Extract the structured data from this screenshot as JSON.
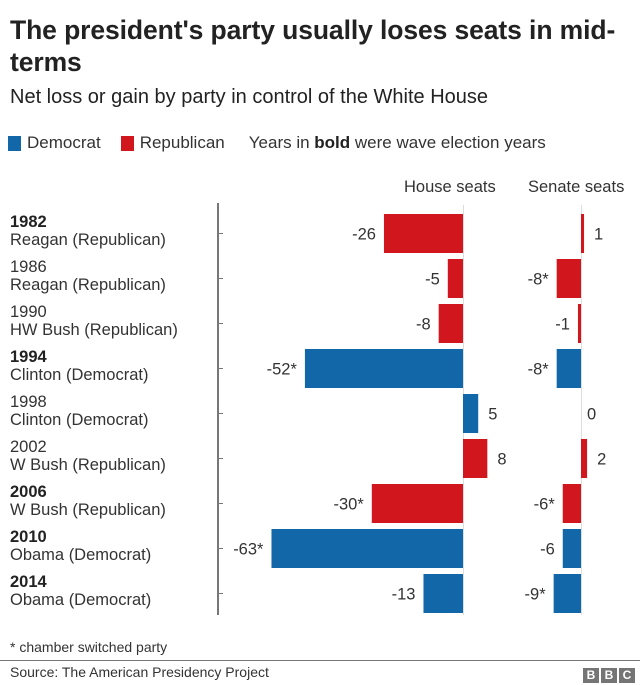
{
  "header": {
    "title": "The president's party usually loses seats in mid-terms",
    "subtitle": "Net loss or gain by party in control of the White House"
  },
  "legend": {
    "democrat_label": "Democrat",
    "republican_label": "Republican",
    "note_prefix": "Years in ",
    "note_bold": "bold",
    "note_suffix": " were wave election years"
  },
  "colors": {
    "democrat": "#1167a8",
    "republican": "#d1161d",
    "zero_line": "#dddddd",
    "axis": "#777777"
  },
  "footer": {
    "footnote": "* chamber switched party",
    "source": "Source: The American Presidency Project",
    "logo": [
      "B",
      "B",
      "C"
    ]
  },
  "chart_data": {
    "type": "bar",
    "orientation": "horizontal",
    "title": "The president's party usually loses seats in mid-terms",
    "subtitle": "Net loss or gain by party in control of the White House",
    "panels": [
      "House seats",
      "Senate seats"
    ],
    "legend": [
      "Democrat",
      "Republican"
    ],
    "legend_position": "top-left",
    "grid": false,
    "rows": [
      {
        "year": "1982",
        "president": "Reagan (Republican)",
        "party": "republican",
        "wave": true,
        "house": -26,
        "house_label": "-26",
        "senate": 1,
        "senate_label": "1"
      },
      {
        "year": "1986",
        "president": "Reagan (Republican)",
        "party": "republican",
        "wave": false,
        "house": -5,
        "house_label": "-5",
        "senate": -8,
        "senate_label": "-8*"
      },
      {
        "year": "1990",
        "president": "HW Bush (Republican)",
        "party": "republican",
        "wave": false,
        "house": -8,
        "house_label": "-8",
        "senate": -1,
        "senate_label": "-1"
      },
      {
        "year": "1994",
        "president": "Clinton (Democrat)",
        "party": "democrat",
        "wave": true,
        "house": -52,
        "house_label": "-52*",
        "senate": -8,
        "senate_label": "-8*"
      },
      {
        "year": "1998",
        "president": "Clinton (Democrat)",
        "party": "democrat",
        "wave": false,
        "house": 5,
        "house_label": "5",
        "senate": 0,
        "senate_label": "0"
      },
      {
        "year": "2002",
        "president": "W Bush (Republican)",
        "party": "republican",
        "wave": false,
        "house": 8,
        "house_label": "8",
        "senate": 2,
        "senate_label": "2"
      },
      {
        "year": "2006",
        "president": "W Bush (Republican)",
        "party": "republican",
        "wave": true,
        "house": -30,
        "house_label": "-30*",
        "senate": -6,
        "senate_label": "-6*"
      },
      {
        "year": "2010",
        "president": "Obama (Democrat)",
        "party": "democrat",
        "wave": true,
        "house": -63,
        "house_label": "-63*",
        "senate": -6,
        "senate_label": "-6"
      },
      {
        "year": "2014",
        "president": "Obama (Democrat)",
        "party": "democrat",
        "wave": true,
        "house": -13,
        "house_label": "-13",
        "senate": -9,
        "senate_label": "-9*"
      }
    ],
    "footnote": "* chamber switched party",
    "source": "Source: The American Presidency Project"
  }
}
